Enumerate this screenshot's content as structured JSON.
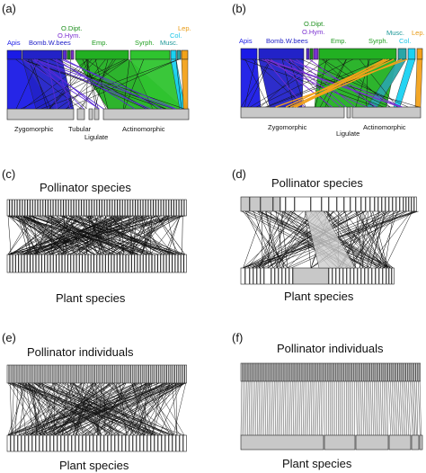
{
  "panels": {
    "a": {
      "label": "(a)",
      "groups_top": [
        "Apis",
        "Bomb.",
        "W.bees",
        "O.Dipt.",
        "O.Hym.",
        "Emp.",
        "Syrph.",
        "Musc.",
        "Col.",
        "Lep."
      ],
      "groups_bottom": [
        "Zygomorphic",
        "Tubular",
        "Ligulate",
        "Actinomorphic"
      ]
    },
    "b": {
      "label": "(b)",
      "groups_top": [
        "Apis",
        "Bomb.",
        "W.bees",
        "O.Dipt.",
        "O.Hym.",
        "Emp.",
        "Syrph.",
        "Musc.",
        "Col.",
        "Lep."
      ],
      "groups_bottom": [
        "Zygomorphic",
        "Ligulate",
        "Actinomorphic"
      ]
    },
    "c": {
      "label": "(c)",
      "top_title": "Pollinator species",
      "bottom_title": "Plant species"
    },
    "d": {
      "label": "(d)",
      "top_title": "Pollinator species",
      "bottom_title": "Plant species"
    },
    "e": {
      "label": "(e)",
      "top_title": "Pollinator individuals",
      "bottom_title": "Plant species"
    },
    "f": {
      "label": "(f)",
      "top_title": "Pollinator individuals",
      "bottom_title": "Plant species"
    }
  },
  "colors": {
    "apis": "#1a1ae6",
    "bombus": "#2222c8",
    "wbees": "#5a2ad6",
    "odipt": "#1e8f1e",
    "ohym": "#7a2fd0",
    "emp": "#22b022",
    "syrph": "#2fc42f",
    "musc": "#2aa6a6",
    "col": "#19d2f2",
    "lep": "#f2a21a",
    "box": "#c8c8c8"
  }
}
